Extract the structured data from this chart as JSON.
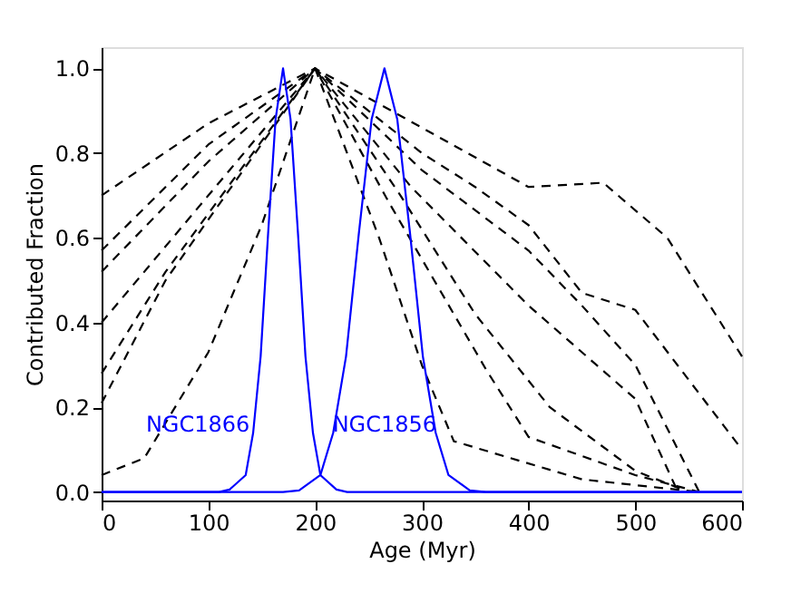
{
  "chart_data": {
    "type": "line",
    "xlabel": "Age (Myr)",
    "ylabel": "Contributed Fraction",
    "xlim": [
      0,
      600
    ],
    "ylim": [
      -0.02,
      1.05
    ],
    "xticks": [
      0,
      100,
      200,
      300,
      400,
      500,
      600
    ],
    "yticks": [
      {
        "value": 0,
        "label": "0.0"
      },
      {
        "value": 0.2,
        "label": "0.2"
      },
      {
        "value": 0.4,
        "label": "0.4"
      },
      {
        "value": 0.6,
        "label": "0.6"
      },
      {
        "value": 0.8,
        "label": "0.8"
      },
      {
        "value": 1,
        "label": "1.0"
      }
    ],
    "grid": false,
    "marker": "none",
    "series": [
      {
        "color": "#000000",
        "line_style": "dashed",
        "x": [
          0,
          100,
          200,
          300,
          400,
          470,
          530,
          600
        ],
        "values": [
          0.7,
          0.87,
          1.0,
          0.86,
          0.72,
          0.73,
          0.6,
          0.32
        ]
      },
      {
        "color": "#000000",
        "line_style": "dashed",
        "x": [
          0,
          100,
          200,
          300,
          350,
          400,
          450,
          500,
          600
        ],
        "values": [
          0.57,
          0.82,
          1.0,
          0.8,
          0.72,
          0.63,
          0.47,
          0.43,
          0.1
        ]
      },
      {
        "color": "#000000",
        "line_style": "dashed",
        "x": [
          0,
          100,
          200,
          300,
          400,
          450,
          500,
          560
        ],
        "values": [
          0.52,
          0.78,
          1.0,
          0.76,
          0.57,
          0.44,
          0.3,
          0.0
        ]
      },
      {
        "color": "#000000",
        "line_style": "dashed",
        "x": [
          0,
          100,
          200,
          290,
          400,
          500,
          540
        ],
        "values": [
          0.4,
          0.7,
          1.0,
          0.72,
          0.44,
          0.22,
          0.0
        ]
      },
      {
        "color": "#000000",
        "line_style": "dashed",
        "x": [
          0,
          60,
          200,
          280,
          350,
          420,
          500,
          550
        ],
        "values": [
          0.28,
          0.52,
          1.0,
          0.7,
          0.42,
          0.2,
          0.05,
          0.0
        ]
      },
      {
        "color": "#000000",
        "line_style": "dashed",
        "x": [
          0,
          60,
          200,
          270,
          360,
          400,
          500,
          560
        ],
        "values": [
          0.21,
          0.5,
          1.0,
          0.68,
          0.29,
          0.13,
          0.04,
          0.0
        ]
      },
      {
        "color": "#000000",
        "line_style": "dashed",
        "x": [
          0,
          40,
          100,
          150,
          200,
          260,
          300,
          330,
          450,
          560
        ],
        "values": [
          0.04,
          0.08,
          0.33,
          0.63,
          1.0,
          0.6,
          0.3,
          0.12,
          0.03,
          0.0
        ]
      },
      {
        "name": "NGC1866",
        "color": "#0000ff",
        "line_style": "solid",
        "x": [
          0,
          110,
          120,
          135,
          142,
          149,
          156,
          163,
          170,
          177,
          184,
          191,
          198,
          205,
          220,
          230,
          600
        ],
        "values": [
          0,
          0,
          0.006,
          0.04,
          0.14,
          0.32,
          0.61,
          0.88,
          1.0,
          0.88,
          0.61,
          0.32,
          0.14,
          0.04,
          0.006,
          0,
          0
        ]
      },
      {
        "name": "NGC1856",
        "color": "#0000ff",
        "line_style": "solid",
        "x": [
          0,
          170,
          185,
          205,
          217,
          229,
          241,
          253,
          265,
          277,
          289,
          301,
          313,
          325,
          345,
          360,
          600
        ],
        "values": [
          0,
          0,
          0.004,
          0.04,
          0.14,
          0.32,
          0.61,
          0.88,
          1.0,
          0.88,
          0.61,
          0.32,
          0.14,
          0.04,
          0.004,
          0,
          0
        ]
      }
    ]
  }
}
